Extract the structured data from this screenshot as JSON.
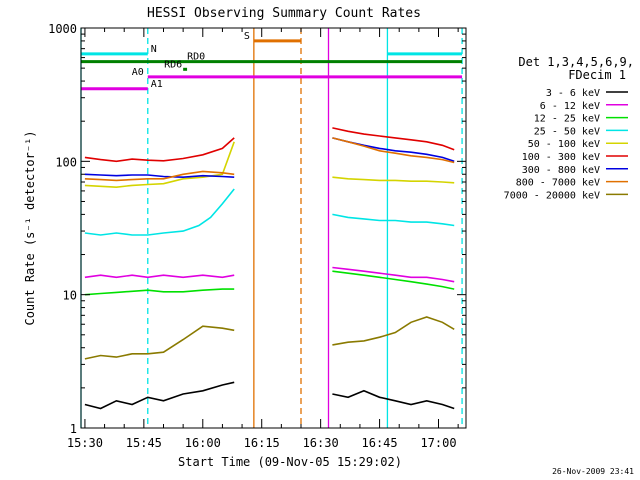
{
  "chart_data": {
    "type": "line",
    "title": "HESSI Observing Summary Count Rates",
    "xlabel": "Start Time (09-Nov-05 15:29:02)",
    "ylabel": "Count Rate (s⁻¹ detector⁻¹)",
    "y_scale": "log",
    "ylim": [
      1,
      1000
    ],
    "xlim": [
      "15:29",
      "17:07"
    ],
    "x_ticks": [
      "15:30",
      "15:45",
      "16:00",
      "16:15",
      "16:30",
      "16:45",
      "17:00"
    ],
    "y_ticks": [
      "1",
      "10",
      "100",
      "1000"
    ],
    "detector_label": "Det 1,3,4,5,6,9,",
    "decim_label": "FDecim 1",
    "timestamp": "26-Nov-2009 23:41",
    "legend_position": "right",
    "series": [
      {
        "name": "3 - 6 keV",
        "color": "#000000",
        "segments": [
          {
            "x": [
              "15:30",
              "15:34",
              "15:38",
              "15:42",
              "15:46",
              "15:50",
              "15:55",
              "16:00",
              "16:05",
              "16:08"
            ],
            "y": [
              1.5,
              1.4,
              1.6,
              1.5,
              1.7,
              1.6,
              1.8,
              1.9,
              2.1,
              2.2
            ]
          },
          {
            "x": [
              "16:33",
              "16:37",
              "16:41",
              "16:45",
              "16:49",
              "16:53",
              "16:57",
              "17:01",
              "17:04"
            ],
            "y": [
              1.8,
              1.7,
              1.9,
              1.7,
              1.6,
              1.5,
              1.6,
              1.5,
              1.4
            ]
          }
        ]
      },
      {
        "name": "6 - 12 keV",
        "color": "#e000e0",
        "segments": [
          {
            "x": [
              "15:30",
              "15:34",
              "15:38",
              "15:42",
              "15:46",
              "15:50",
              "15:55",
              "16:00",
              "16:05",
              "16:08"
            ],
            "y": [
              13.5,
              14,
              13.5,
              14,
              13.5,
              14,
              13.5,
              14,
              13.5,
              14
            ]
          },
          {
            "x": [
              "16:33",
              "16:37",
              "16:41",
              "16:45",
              "16:49",
              "16:53",
              "16:57",
              "17:01",
              "17:04"
            ],
            "y": [
              16,
              15.5,
              15,
              14.5,
              14,
              13.5,
              13.5,
              13,
              12.5
            ]
          }
        ]
      },
      {
        "name": "12 - 25 keV",
        "color": "#00e000",
        "segments": [
          {
            "x": [
              "15:30",
              "15:34",
              "15:38",
              "15:42",
              "15:46",
              "15:50",
              "15:55",
              "16:00",
              "16:05",
              "16:08"
            ],
            "y": [
              10,
              10.2,
              10.4,
              10.6,
              10.8,
              10.5,
              10.5,
              10.8,
              11,
              11
            ]
          },
          {
            "x": [
              "16:33",
              "16:37",
              "16:41",
              "16:45",
              "16:49",
              "16:53",
              "16:57",
              "17:01",
              "17:04"
            ],
            "y": [
              15,
              14.5,
              14,
              13.5,
              13,
              12.5,
              12,
              11.5,
              11
            ]
          }
        ]
      },
      {
        "name": "25 - 50 keV",
        "color": "#00e5e5",
        "segments": [
          {
            "x": [
              "15:30",
              "15:34",
              "15:38",
              "15:42",
              "15:46",
              "15:50",
              "15:55",
              "15:59",
              "16:02",
              "16:05",
              "16:08"
            ],
            "y": [
              29,
              28,
              29,
              28,
              28,
              29,
              30,
              33,
              38,
              48,
              62
            ]
          },
          {
            "x": [
              "16:33",
              "16:37",
              "16:41",
              "16:45",
              "16:49",
              "16:53",
              "16:57",
              "17:01",
              "17:04"
            ],
            "y": [
              40,
              38,
              37,
              36,
              36,
              35,
              35,
              34,
              33
            ]
          }
        ]
      },
      {
        "name": "50 - 100 keV",
        "color": "#d4d400",
        "segments": [
          {
            "x": [
              "15:30",
              "15:34",
              "15:38",
              "15:42",
              "15:46",
              "15:50",
              "15:55",
              "16:00",
              "16:05",
              "16:08"
            ],
            "y": [
              66,
              65,
              64,
              66,
              67,
              68,
              74,
              76,
              80,
              140
            ]
          },
          {
            "x": [
              "16:33",
              "16:37",
              "16:41",
              "16:45",
              "16:49",
              "16:53",
              "16:57",
              "17:01",
              "17:04"
            ],
            "y": [
              76,
              74,
              73,
              72,
              72,
              71,
              71,
              70,
              69
            ]
          }
        ]
      },
      {
        "name": "100 - 300 keV",
        "color": "#e00000",
        "segments": [
          {
            "x": [
              "15:30",
              "15:34",
              "15:38",
              "15:42",
              "15:46",
              "15:50",
              "15:55",
              "16:00",
              "16:05",
              "16:08"
            ],
            "y": [
              107,
              103,
              100,
              104,
              102,
              101,
              105,
              112,
              125,
              150
            ]
          },
          {
            "x": [
              "16:33",
              "16:37",
              "16:41",
              "16:45",
              "16:49",
              "16:53",
              "16:57",
              "17:01",
              "17:04"
            ],
            "y": [
              178,
              168,
              160,
              155,
              150,
              145,
              140,
              132,
              122
            ]
          }
        ]
      },
      {
        "name": "300 - 800 keV",
        "color": "#0000e0",
        "segments": [
          {
            "x": [
              "15:30",
              "15:34",
              "15:38",
              "15:42",
              "15:46",
              "15:50",
              "15:55",
              "16:00",
              "16:05",
              "16:08"
            ],
            "y": [
              80,
              79,
              78,
              79,
              79,
              77,
              76,
              78,
              77,
              76
            ]
          },
          {
            "x": [
              "16:33",
              "16:37",
              "16:41",
              "16:45",
              "16:49",
              "16:53",
              "16:57",
              "17:01",
              "17:04"
            ],
            "y": [
              150,
              140,
              132,
              125,
              120,
              117,
              113,
              107,
              100
            ]
          }
        ]
      },
      {
        "name": "800 - 7000 keV",
        "color": "#e07000",
        "segments": [
          {
            "x": [
              "15:30",
              "15:34",
              "15:38",
              "15:42",
              "15:46",
              "15:50",
              "15:55",
              "16:00",
              "16:05",
              "16:08"
            ],
            "y": [
              74,
              73,
              72,
              73,
              74,
              74,
              80,
              84,
              82,
              80
            ]
          },
          {
            "x": [
              "16:33",
              "16:37",
              "16:41",
              "16:45",
              "16:49",
              "16:53",
              "16:57",
              "17:01",
              "17:04"
            ],
            "y": [
              150,
              140,
              130,
              120,
              115,
              110,
              107,
              103,
              98
            ]
          }
        ]
      },
      {
        "name": "7000 - 20000 keV",
        "color": "#8a7a00",
        "segments": [
          {
            "x": [
              "15:30",
              "15:34",
              "15:38",
              "15:42",
              "15:46",
              "15:50",
              "15:55",
              "16:00",
              "16:05",
              "16:08"
            ],
            "y": [
              3.3,
              3.5,
              3.4,
              3.6,
              3.6,
              3.7,
              4.6,
              5.8,
              5.6,
              5.4
            ]
          },
          {
            "x": [
              "16:33",
              "16:37",
              "16:41",
              "16:45",
              "16:49",
              "16:53",
              "16:57",
              "17:01",
              "17:04"
            ],
            "y": [
              4.2,
              4.4,
              4.5,
              4.8,
              5.2,
              6.2,
              6.8,
              6.2,
              5.5
            ]
          }
        ]
      }
    ],
    "flags": [
      {
        "name": "N",
        "color": "#00e5e5",
        "y": 640,
        "x": [
          [
            "15:29",
            "15:46"
          ],
          [
            "16:47",
            "17:06"
          ]
        ]
      },
      {
        "name": "RD0",
        "color": "#008000",
        "y": 560,
        "x": [
          [
            "15:29",
            "17:06"
          ]
        ]
      },
      {
        "name": "RD6",
        "color": "#008000",
        "y": 490,
        "x": [
          [
            "15:55",
            "15:56"
          ]
        ]
      },
      {
        "name": "A0",
        "color": "#e000e0",
        "y": 430,
        "x": [
          [
            "15:46",
            "17:06"
          ]
        ]
      },
      {
        "name": "A1",
        "color": "#e000e0",
        "y": 350,
        "x": [
          [
            "15:29",
            "15:46"
          ]
        ]
      },
      {
        "name": "S",
        "color": "#e07000",
        "y": 800,
        "x": [
          [
            "16:13",
            "16:25"
          ]
        ]
      }
    ],
    "vertical_lines": [
      {
        "x": "15:29",
        "color": "#00e5e5",
        "dashed": false
      },
      {
        "x": "15:46",
        "color": "#00e5e5",
        "dashed": true
      },
      {
        "x": "16:47",
        "color": "#00e5e5",
        "dashed": false
      },
      {
        "x": "17:06",
        "color": "#00e5e5",
        "dashed": true
      },
      {
        "x": "16:13",
        "color": "#e07000",
        "dashed": false
      },
      {
        "x": "16:25",
        "color": "#e07000",
        "dashed": true
      },
      {
        "x": "16:32",
        "color": "#e000e0",
        "dashed": false
      }
    ]
  }
}
